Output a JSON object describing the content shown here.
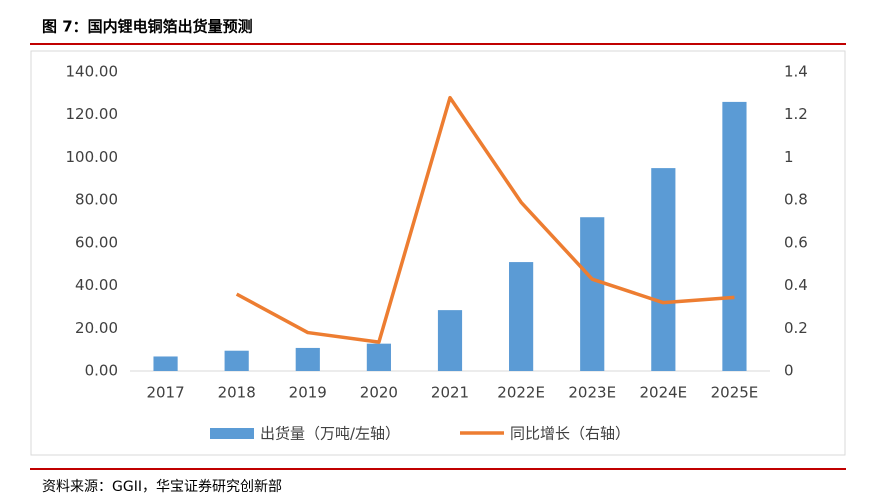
{
  "chart_data": {
    "type": "bar-line",
    "title": "图 7：国内锂电铜箔出货量预测",
    "source": "资料来源：GGII，华宝证券研究创新部",
    "categories": [
      "2017",
      "2018",
      "2019",
      "2020",
      "2021",
      "2022E",
      "2023E",
      "2024E",
      "2025E"
    ],
    "series": [
      {
        "name": "出货量（万吨/左轴）",
        "type": "bar",
        "color": "#5b9bd5",
        "values": [
          6.8,
          9.5,
          10.8,
          12.8,
          28.5,
          51,
          72,
          95,
          126
        ]
      },
      {
        "name": "同比增长（右轴）",
        "type": "line",
        "axis": "y2",
        "color": "#ed7d31",
        "values": [
          null,
          0.36,
          0.18,
          0.135,
          1.28,
          0.79,
          0.43,
          0.32,
          0.345
        ]
      }
    ],
    "ylim": [
      0,
      140
    ],
    "yticks": [
      {
        "value": 0,
        "label": "0.00"
      },
      {
        "value": 20,
        "label": "20.00"
      },
      {
        "value": 40,
        "label": "40.00"
      },
      {
        "value": 60,
        "label": "60.00"
      },
      {
        "value": 80,
        "label": "80.00"
      },
      {
        "value": 100,
        "label": "100.00"
      },
      {
        "value": 120,
        "label": "120.00"
      },
      {
        "value": 140,
        "label": "140.00"
      }
    ],
    "y2lim": [
      0,
      1.4
    ],
    "y2ticks": [
      0,
      0.2,
      0.4,
      0.6,
      0.8,
      1,
      1.2,
      1.4
    ],
    "legend": "bottom"
  }
}
